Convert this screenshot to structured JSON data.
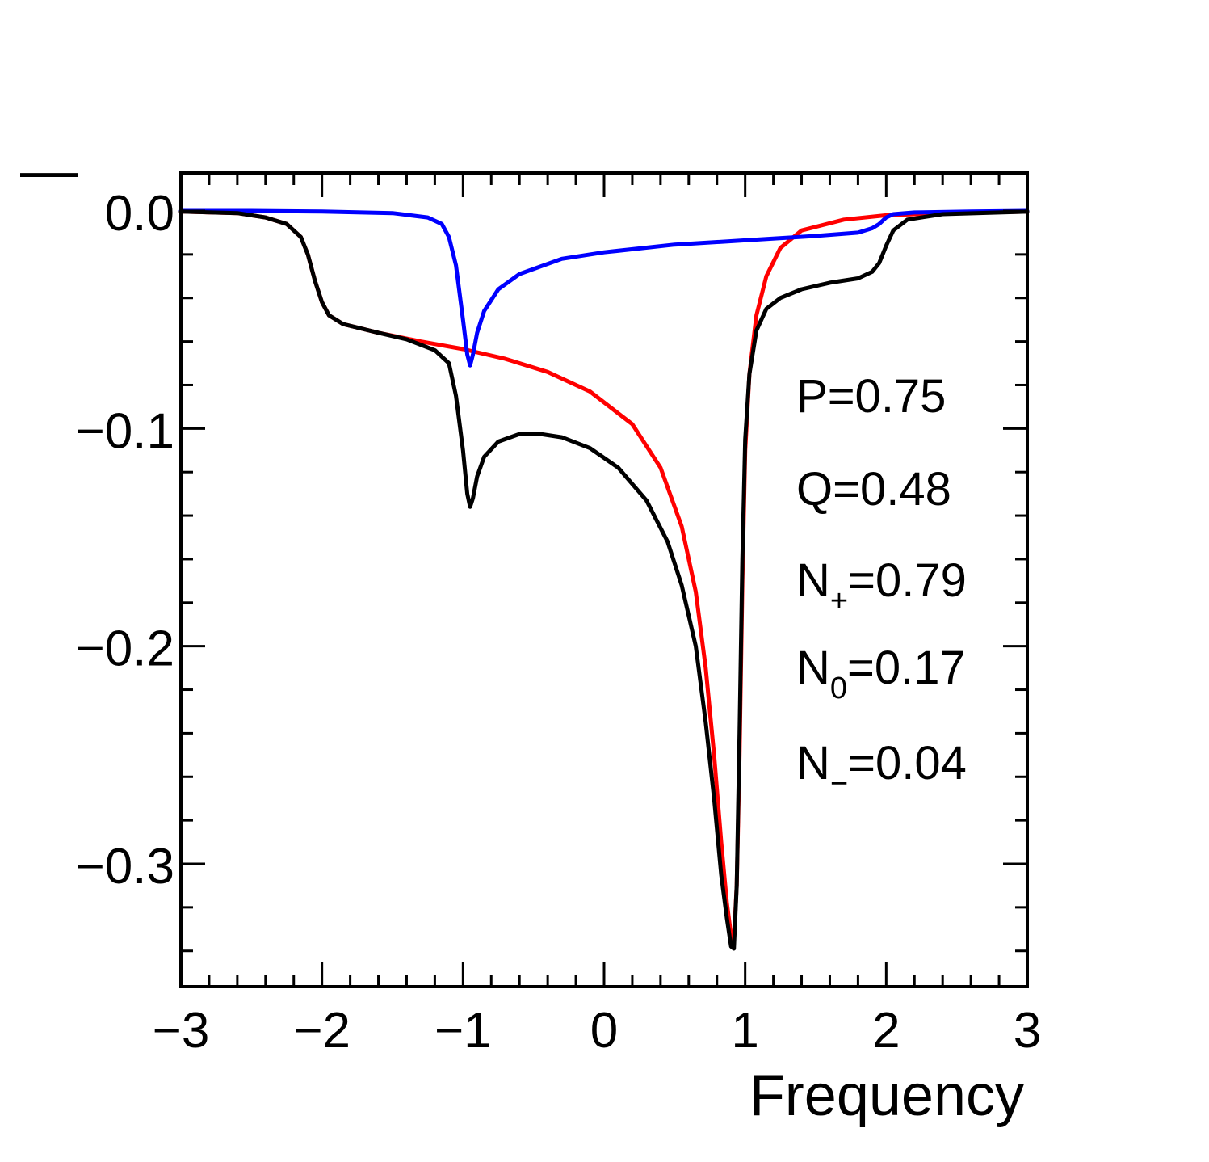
{
  "chart_data": {
    "type": "line",
    "title": "",
    "xlabel": "Frequency",
    "ylabel": "—",
    "xlim": [
      -3,
      3
    ],
    "ylim": [
      -0.355,
      0.018
    ],
    "x_ticks": [
      -3,
      -2,
      -1,
      0,
      1,
      2,
      3
    ],
    "x_tick_labels": [
      "−3",
      "−2",
      "−1",
      "0",
      "1",
      "2",
      "3"
    ],
    "y_ticks": [
      0.0,
      -0.1,
      -0.2,
      -0.3
    ],
    "y_tick_labels": [
      "0.0",
      "−0.1",
      "−0.2",
      "−0.3"
    ],
    "grid": false,
    "legend": "none",
    "series": [
      {
        "name": "red",
        "color": "#ff0000",
        "points": [
          [
            -3.0,
            -0.0003
          ],
          [
            -2.6,
            -0.001
          ],
          [
            -2.4,
            -0.003
          ],
          [
            -2.25,
            -0.006
          ],
          [
            -2.15,
            -0.012
          ],
          [
            -2.1,
            -0.02
          ],
          [
            -2.05,
            -0.032
          ],
          [
            -2.0,
            -0.042
          ],
          [
            -1.95,
            -0.048
          ],
          [
            -1.85,
            -0.052
          ],
          [
            -1.6,
            -0.056
          ],
          [
            -1.3,
            -0.06
          ],
          [
            -1.0,
            -0.0635
          ],
          [
            -0.7,
            -0.068
          ],
          [
            -0.4,
            -0.074
          ],
          [
            -0.1,
            -0.083
          ],
          [
            0.2,
            -0.098
          ],
          [
            0.4,
            -0.118
          ],
          [
            0.55,
            -0.145
          ],
          [
            0.65,
            -0.175
          ],
          [
            0.72,
            -0.21
          ],
          [
            0.78,
            -0.25
          ],
          [
            0.83,
            -0.29
          ],
          [
            0.87,
            -0.318
          ],
          [
            0.9,
            -0.333
          ],
          [
            0.92,
            -0.335
          ],
          [
            0.94,
            -0.31
          ],
          [
            0.96,
            -0.25
          ],
          [
            0.98,
            -0.17
          ],
          [
            1.0,
            -0.11
          ],
          [
            1.03,
            -0.075
          ],
          [
            1.08,
            -0.048
          ],
          [
            1.15,
            -0.03
          ],
          [
            1.25,
            -0.017
          ],
          [
            1.4,
            -0.009
          ],
          [
            1.7,
            -0.004
          ],
          [
            2.0,
            -0.002
          ],
          [
            2.4,
            -0.001
          ],
          [
            3.0,
            -0.0003
          ]
        ]
      },
      {
        "name": "blue",
        "color": "#0000ff",
        "points": [
          [
            -3.0,
            0.0
          ],
          [
            -2.5,
            0.0
          ],
          [
            -2.0,
            -0.0003
          ],
          [
            -1.5,
            -0.001
          ],
          [
            -1.25,
            -0.003
          ],
          [
            -1.15,
            -0.006
          ],
          [
            -1.1,
            -0.012
          ],
          [
            -1.05,
            -0.025
          ],
          [
            -1.0,
            -0.05
          ],
          [
            -0.97,
            -0.066
          ],
          [
            -0.95,
            -0.071
          ],
          [
            -0.93,
            -0.066
          ],
          [
            -0.9,
            -0.056
          ],
          [
            -0.85,
            -0.046
          ],
          [
            -0.75,
            -0.036
          ],
          [
            -0.6,
            -0.029
          ],
          [
            -0.3,
            -0.022
          ],
          [
            0.0,
            -0.019
          ],
          [
            0.5,
            -0.0155
          ],
          [
            1.0,
            -0.0135
          ],
          [
            1.5,
            -0.0115
          ],
          [
            1.8,
            -0.01
          ],
          [
            1.9,
            -0.008
          ],
          [
            1.95,
            -0.006
          ],
          [
            2.0,
            -0.003
          ],
          [
            2.05,
            -0.0015
          ],
          [
            2.2,
            -0.0007
          ],
          [
            2.6,
            -0.0003
          ],
          [
            3.0,
            0.0
          ]
        ]
      },
      {
        "name": "black",
        "color": "#000000",
        "points": [
          [
            -3.0,
            -0.0003
          ],
          [
            -2.6,
            -0.001
          ],
          [
            -2.4,
            -0.003
          ],
          [
            -2.25,
            -0.006
          ],
          [
            -2.15,
            -0.012
          ],
          [
            -2.1,
            -0.02
          ],
          [
            -2.05,
            -0.032
          ],
          [
            -2.0,
            -0.042
          ],
          [
            -1.95,
            -0.048
          ],
          [
            -1.85,
            -0.052
          ],
          [
            -1.6,
            -0.056
          ],
          [
            -1.4,
            -0.059
          ],
          [
            -1.2,
            -0.064
          ],
          [
            -1.1,
            -0.07
          ],
          [
            -1.05,
            -0.085
          ],
          [
            -1.0,
            -0.11
          ],
          [
            -0.97,
            -0.13
          ],
          [
            -0.95,
            -0.136
          ],
          [
            -0.93,
            -0.132
          ],
          [
            -0.9,
            -0.122
          ],
          [
            -0.85,
            -0.113
          ],
          [
            -0.75,
            -0.106
          ],
          [
            -0.6,
            -0.1025
          ],
          [
            -0.45,
            -0.1025
          ],
          [
            -0.3,
            -0.104
          ],
          [
            -0.1,
            -0.109
          ],
          [
            0.1,
            -0.118
          ],
          [
            0.3,
            -0.133
          ],
          [
            0.45,
            -0.152
          ],
          [
            0.55,
            -0.172
          ],
          [
            0.65,
            -0.2
          ],
          [
            0.72,
            -0.235
          ],
          [
            0.78,
            -0.27
          ],
          [
            0.83,
            -0.305
          ],
          [
            0.87,
            -0.325
          ],
          [
            0.9,
            -0.338
          ],
          [
            0.92,
            -0.339
          ],
          [
            0.94,
            -0.31
          ],
          [
            0.96,
            -0.24
          ],
          [
            0.98,
            -0.16
          ],
          [
            1.0,
            -0.105
          ],
          [
            1.03,
            -0.075
          ],
          [
            1.08,
            -0.055
          ],
          [
            1.15,
            -0.045
          ],
          [
            1.25,
            -0.04
          ],
          [
            1.4,
            -0.036
          ],
          [
            1.6,
            -0.033
          ],
          [
            1.8,
            -0.031
          ],
          [
            1.9,
            -0.028
          ],
          [
            1.95,
            -0.024
          ],
          [
            2.0,
            -0.016
          ],
          [
            2.05,
            -0.009
          ],
          [
            2.15,
            -0.004
          ],
          [
            2.4,
            -0.0015
          ],
          [
            3.0,
            -0.0003
          ]
        ]
      }
    ],
    "annotations": [
      {
        "label": "P",
        "sub": "",
        "text": "=0.75"
      },
      {
        "label": "Q",
        "sub": "",
        "text": "=0.48"
      },
      {
        "label": "N",
        "sub": "+",
        "text": "=0.79"
      },
      {
        "label": "N",
        "sub": "0",
        "text": "=0.17"
      },
      {
        "label": "N",
        "sub": "−",
        "text": "=0.04"
      }
    ]
  }
}
